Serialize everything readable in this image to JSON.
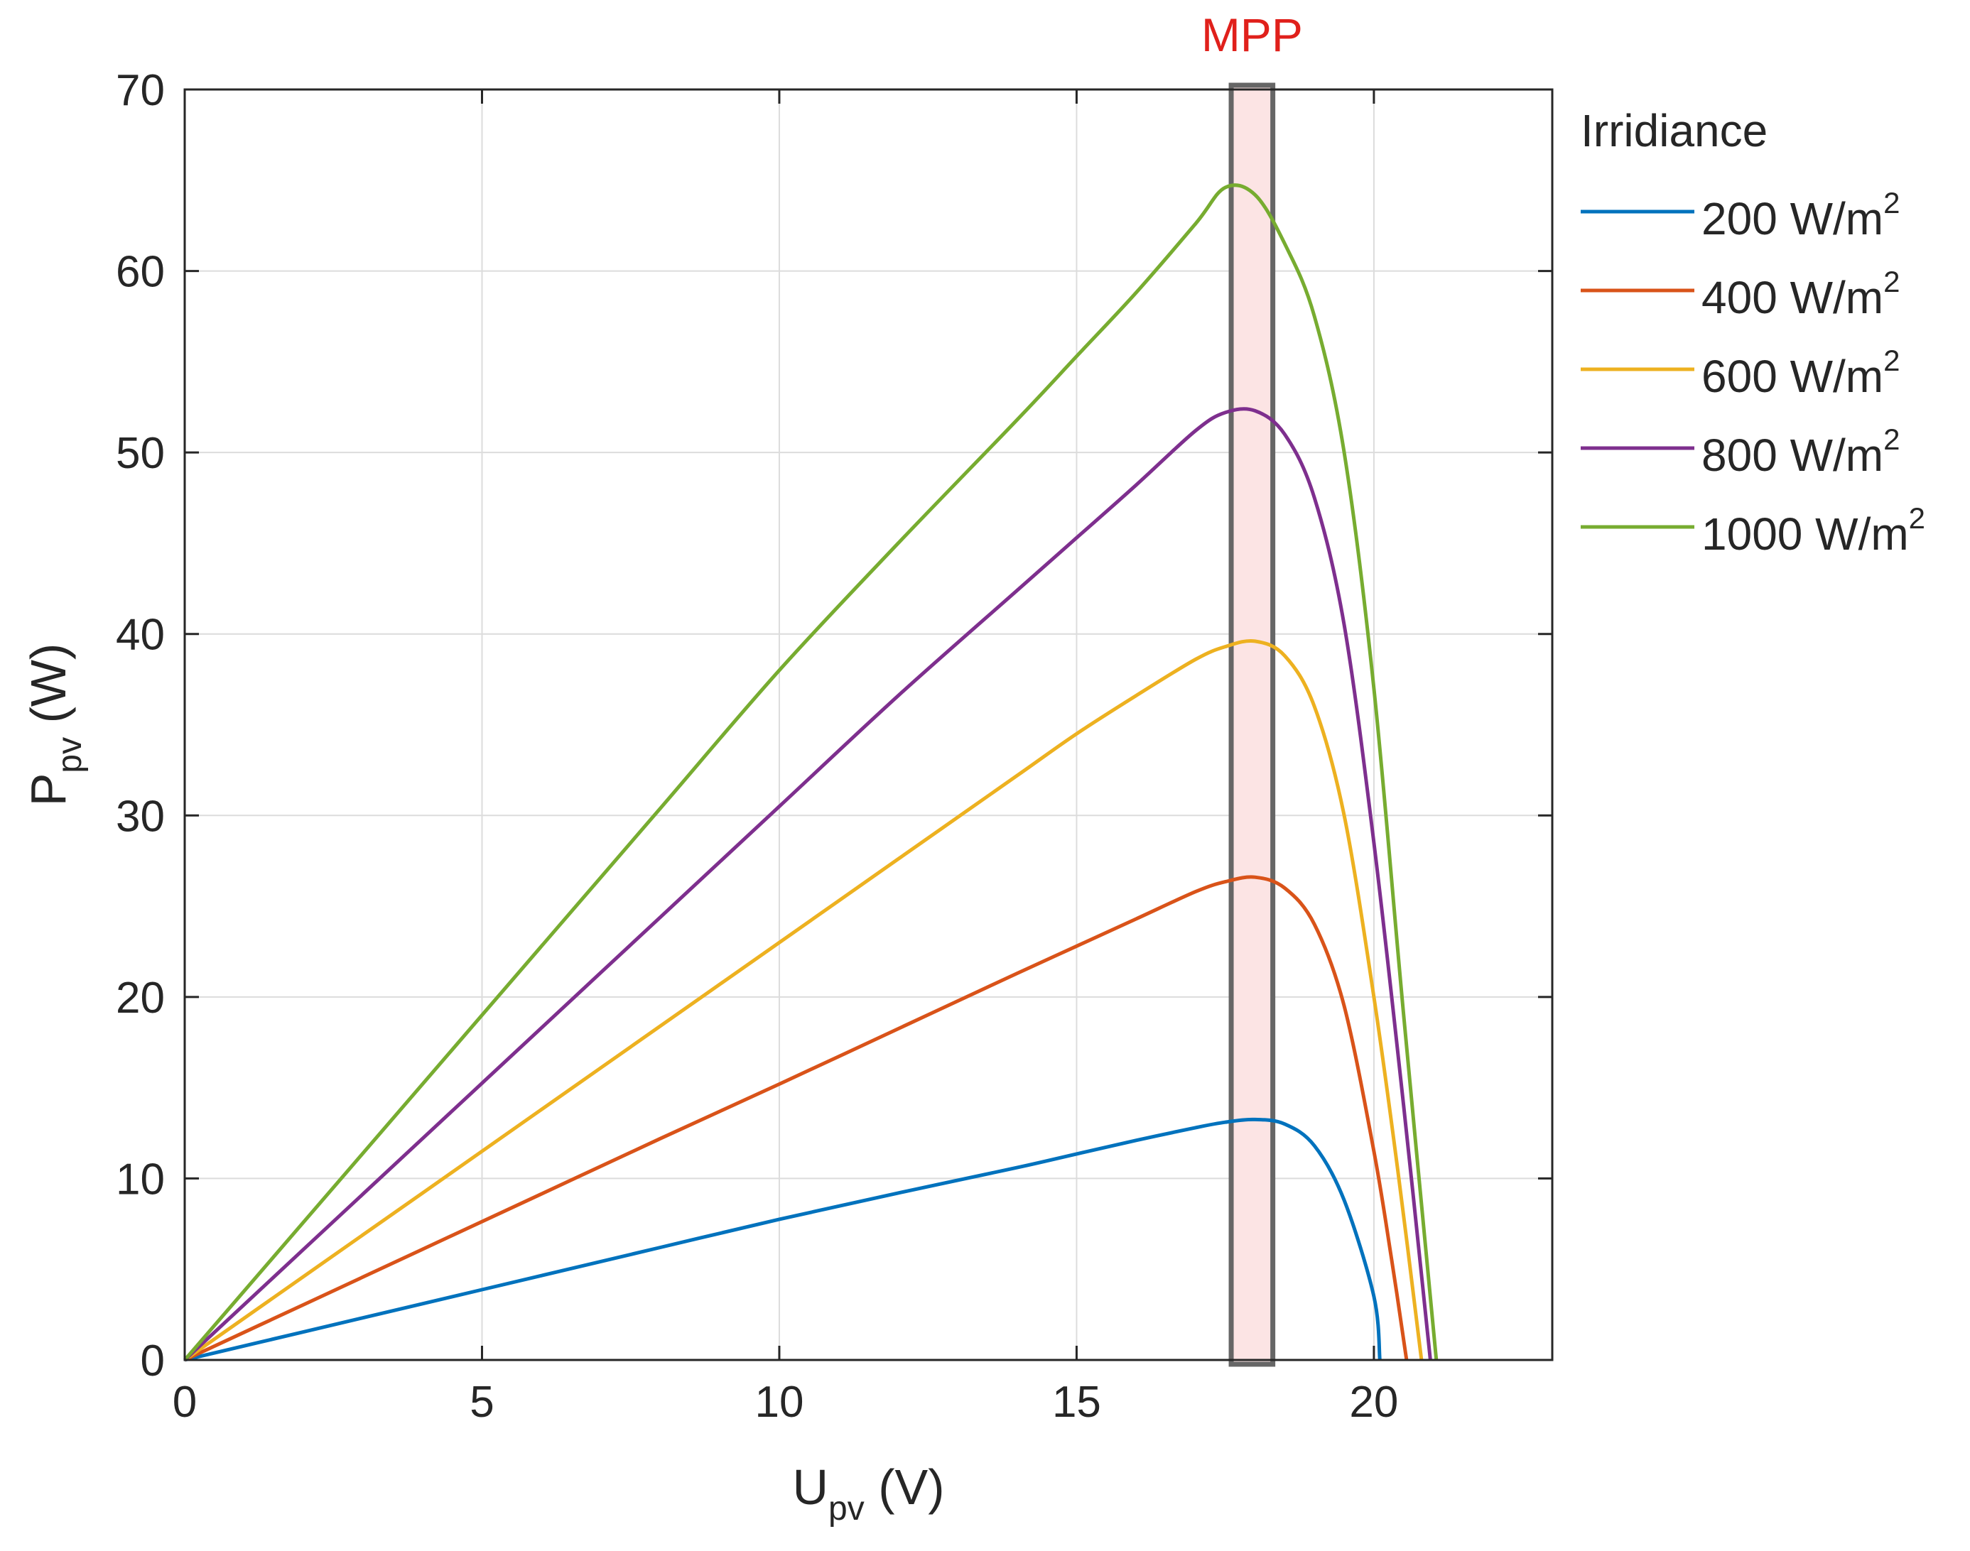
{
  "chart_data": {
    "type": "line",
    "title": "",
    "xlabel": {
      "main": "U",
      "sub": "pv",
      "unit": " (V)"
    },
    "ylabel": {
      "main": "P",
      "sub": "pv",
      "unit": " (W)"
    },
    "xlim": [
      0,
      23
    ],
    "ylim": [
      0,
      70
    ],
    "xticks": [
      0,
      5,
      10,
      15,
      20
    ],
    "yticks": [
      0,
      10,
      20,
      30,
      40,
      50,
      60,
      70
    ],
    "grid": true,
    "legend": {
      "title": "Irridiance",
      "placement": "outside-top-right"
    },
    "annotation": {
      "text": "MPP",
      "color": "#e0201b",
      "band": [
        17.6,
        18.3
      ],
      "fill": "#fce4e4",
      "stroke": "#666666"
    },
    "series": [
      {
        "name": "200 W/m",
        "sup": "2",
        "color": "#0072bd",
        "x": [
          0,
          2,
          4,
          6,
          8,
          10,
          12,
          14,
          15,
          16,
          17,
          17.5,
          18,
          18.5,
          19,
          19.5,
          20,
          20.1
        ],
        "y": [
          0,
          1.55,
          3.1,
          4.65,
          6.2,
          7.75,
          9.2,
          10.6,
          11.35,
          12.1,
          12.8,
          13.1,
          13.25,
          13.0,
          11.8,
          8.8,
          3.5,
          0
        ]
      },
      {
        "name": "400 W/m",
        "sup": "2",
        "color": "#d95319",
        "x": [
          0,
          2,
          4,
          6,
          8,
          10,
          12,
          14,
          15,
          16,
          17,
          17.5,
          18,
          18.5,
          19,
          19.5,
          20,
          20.3,
          20.55
        ],
        "y": [
          0,
          3.05,
          6.1,
          9.15,
          12.2,
          15.2,
          18.25,
          21.3,
          22.8,
          24.3,
          25.8,
          26.35,
          26.6,
          26.0,
          24.0,
          19.5,
          11.5,
          5.5,
          0
        ]
      },
      {
        "name": "600 W/m",
        "sup": "2",
        "color": "#edb120",
        "x": [
          0,
          2,
          4,
          6,
          8,
          10,
          12,
          14,
          15,
          16,
          17,
          17.5,
          18,
          18.5,
          19,
          19.5,
          20,
          20.4,
          20.8
        ],
        "y": [
          0,
          4.6,
          9.2,
          13.8,
          18.4,
          23.0,
          27.6,
          32.2,
          34.5,
          36.6,
          38.6,
          39.3,
          39.6,
          38.8,
          36.0,
          30.0,
          20.0,
          10.5,
          0
        ]
      },
      {
        "name": "800 W/m",
        "sup": "2",
        "color": "#7e2f8e",
        "x": [
          0,
          2,
          4,
          6,
          8,
          10,
          12,
          14,
          15,
          16,
          17,
          17.5,
          18,
          18.5,
          19,
          19.5,
          20,
          20.5,
          20.95
        ],
        "y": [
          0,
          6.1,
          12.2,
          18.3,
          24.4,
          30.5,
          36.6,
          42.4,
          45.3,
          48.2,
          51.2,
          52.2,
          52.3,
          51.0,
          47.5,
          40.5,
          28.5,
          14.0,
          0
        ]
      },
      {
        "name": "1000 W/m",
        "sup": "2",
        "color": "#77ac30",
        "x": [
          0,
          2,
          4,
          6,
          8,
          10,
          12,
          14,
          15,
          16,
          17,
          17.5,
          18,
          18.5,
          19,
          19.5,
          20,
          20.5,
          21.05
        ],
        "y": [
          0,
          7.6,
          15.2,
          22.8,
          30.4,
          38.0,
          45.0,
          51.8,
          55.3,
          58.8,
          62.6,
          64.6,
          64.2,
          61.5,
          57.5,
          50.0,
          37.0,
          19.0,
          0
        ]
      }
    ]
  }
}
